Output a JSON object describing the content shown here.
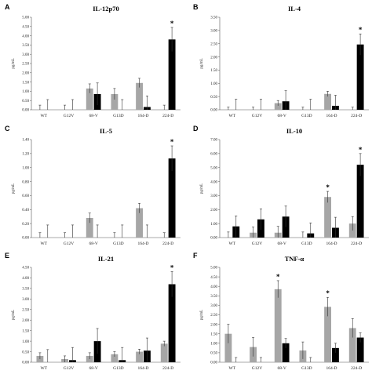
{
  "colors": {
    "gray": "#a6a6a6",
    "black": "#000000",
    "axis": "#555555"
  },
  "chart_data": [
    {
      "type": "bar",
      "panel_label": "A",
      "title": "IL-12p70",
      "ylabel": "pg/mL",
      "categories": [
        "WT",
        "G12V",
        "68-V",
        "G13D",
        "164-D",
        "224-D"
      ],
      "ylim": [
        0,
        5.0
      ],
      "yticks": [
        "0.00",
        "0.50",
        "1.00",
        "1.50",
        "2.00",
        "2.50",
        "3.00",
        "3.50",
        "4.00",
        "4.50",
        "5.00"
      ],
      "series": [
        {
          "values": [
            0.0,
            0.0,
            1.15,
            0.85,
            1.45,
            0.0
          ],
          "errors": [
            0.25,
            0.25,
            0.25,
            0.3,
            0.25,
            0.25
          ]
        },
        {
          "values": [
            0.0,
            0.0,
            0.85,
            0.0,
            0.15,
            3.8
          ],
          "errors": [
            0.55,
            0.55,
            0.6,
            0.55,
            0.6,
            0.65
          ]
        }
      ],
      "stars": [
        {
          "category": 5,
          "series": 1
        }
      ]
    },
    {
      "type": "bar",
      "panel_label": "B",
      "title": "IL-4",
      "ylabel": "pg/mL",
      "categories": [
        "WT",
        "G12V",
        "68-V",
        "G13D",
        "164-D",
        "224-D"
      ],
      "ylim": [
        0,
        3.5
      ],
      "yticks": [
        "0.00",
        "0.50",
        "1.00",
        "1.50",
        "2.00",
        "2.50",
        "3.00",
        "3.50"
      ],
      "series": [
        {
          "values": [
            0.0,
            0.0,
            0.25,
            0.0,
            0.6,
            0.0
          ],
          "errors": [
            0.1,
            0.1,
            0.1,
            0.1,
            0.1,
            0.1
          ]
        },
        {
          "values": [
            0.0,
            0.0,
            0.32,
            0.0,
            0.15,
            2.47
          ],
          "errors": [
            0.4,
            0.4,
            0.4,
            0.4,
            0.4,
            0.4
          ]
        }
      ],
      "stars": [
        {
          "category": 5,
          "series": 1
        }
      ]
    },
    {
      "type": "bar",
      "panel_label": "C",
      "title": "IL-5",
      "ylabel": "pg/mL",
      "categories": [
        "WT",
        "G12V",
        "68-V",
        "G13D",
        "164-D",
        "224-D"
      ],
      "ylim": [
        0,
        1.4
      ],
      "yticks": [
        "0.00",
        "0.20",
        "0.40",
        "0.60",
        "0.80",
        "1.00",
        "1.20",
        "1.40"
      ],
      "series": [
        {
          "values": [
            0.0,
            0.0,
            0.28,
            0.0,
            0.42,
            0.0
          ],
          "errors": [
            0.07,
            0.07,
            0.07,
            0.07,
            0.07,
            0.07
          ]
        },
        {
          "values": [
            0.0,
            0.0,
            0.0,
            0.0,
            0.0,
            1.13
          ],
          "errors": [
            0.18,
            0.18,
            0.18,
            0.18,
            0.18,
            0.18
          ]
        }
      ],
      "stars": [
        {
          "category": 5,
          "series": 1
        }
      ]
    },
    {
      "type": "bar",
      "panel_label": "D",
      "title": "IL-10",
      "ylabel": "pg/mL",
      "categories": [
        "WT",
        "G12V",
        "68-V",
        "G13D",
        "164-D",
        "224-D"
      ],
      "ylim": [
        0,
        7.0
      ],
      "yticks": [
        "0.00",
        "1.00",
        "2.00",
        "3.00",
        "4.00",
        "5.00",
        "6.00",
        "7.00"
      ],
      "series": [
        {
          "values": [
            0.0,
            0.35,
            0.35,
            0.0,
            2.9,
            1.0
          ],
          "errors": [
            0.4,
            0.4,
            0.45,
            0.4,
            0.4,
            0.5
          ]
        },
        {
          "values": [
            0.8,
            1.3,
            1.5,
            0.3,
            0.7,
            5.2
          ],
          "errors": [
            0.75,
            0.75,
            0.75,
            0.75,
            0.75,
            0.8
          ]
        }
      ],
      "stars": [
        {
          "category": 4,
          "series": 0
        },
        {
          "category": 5,
          "series": 1
        }
      ]
    },
    {
      "type": "bar",
      "panel_label": "E",
      "title": "IL-21",
      "ylabel": "pg/mL",
      "categories": [
        "WT",
        "G12V",
        "68-V",
        "G13D",
        "164-D",
        "224-D"
      ],
      "ylim": [
        0,
        4.5
      ],
      "yticks": [
        "0.00",
        "0.50",
        "1.00",
        "1.50",
        "2.00",
        "2.50",
        "3.00",
        "3.50",
        "4.00",
        "4.50"
      ],
      "series": [
        {
          "values": [
            0.3,
            0.15,
            0.3,
            0.38,
            0.5,
            0.88
          ],
          "errors": [
            0.15,
            0.15,
            0.15,
            0.12,
            0.12,
            0.12
          ]
        },
        {
          "values": [
            0.0,
            0.1,
            1.0,
            0.1,
            0.55,
            3.7
          ],
          "errors": [
            0.6,
            0.6,
            0.6,
            0.6,
            0.6,
            0.6
          ]
        }
      ],
      "stars": [
        {
          "category": 5,
          "series": 1
        }
      ]
    },
    {
      "type": "bar",
      "panel_label": "F",
      "title": "TNF-α",
      "ylabel": "pg/mL",
      "categories": [
        "WT",
        "G12V",
        "68-V",
        "G13D",
        "164-D",
        "224-D"
      ],
      "ylim": [
        0,
        5.0
      ],
      "yticks": [
        "0.00",
        "0.50",
        "1.00",
        "1.50",
        "2.00",
        "2.50",
        "3.00",
        "3.50",
        "4.00",
        "4.50",
        "5.00"
      ],
      "series": [
        {
          "values": [
            1.5,
            0.8,
            3.85,
            0.62,
            2.92,
            1.8
          ],
          "errors": [
            0.5,
            0.5,
            0.45,
            0.45,
            0.5,
            0.5
          ]
        },
        {
          "values": [
            0.0,
            0.0,
            1.0,
            0.0,
            0.75,
            1.3
          ],
          "errors": [
            0.25,
            0.25,
            0.25,
            0.25,
            0.25,
            0.25
          ]
        }
      ],
      "stars": [
        {
          "category": 2,
          "series": 0
        },
        {
          "category": 4,
          "series": 0
        }
      ]
    }
  ]
}
